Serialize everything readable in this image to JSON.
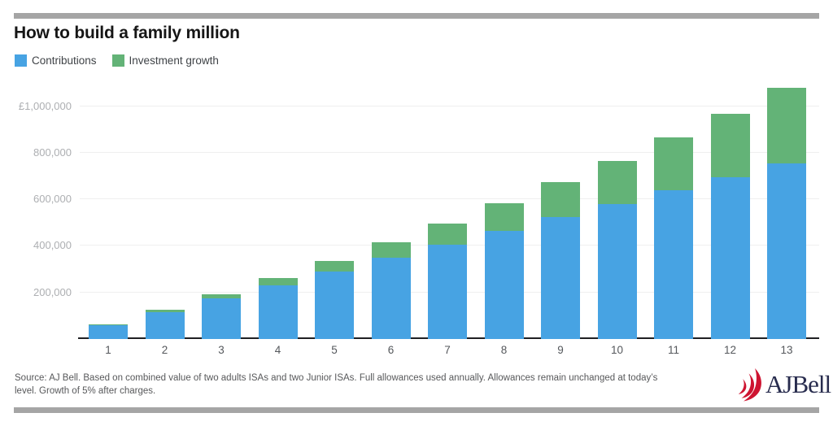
{
  "title": "How to build a family million",
  "legend": [
    {
      "label": "Contributions",
      "color": "#47a3e3"
    },
    {
      "label": "Investment growth",
      "color": "#63b377"
    }
  ],
  "chart_data": {
    "type": "bar",
    "stacked": true,
    "title": "How to build a family million",
    "xlabel": "",
    "ylabel": "",
    "categories": [
      "1",
      "2",
      "3",
      "4",
      "5",
      "6",
      "7",
      "8",
      "9",
      "10",
      "11",
      "12",
      "13"
    ],
    "series": [
      {
        "name": "Contributions",
        "color": "#47a3e3",
        "values": [
          58000,
          116000,
          174000,
          232000,
          290000,
          348000,
          406000,
          464000,
          522000,
          580000,
          638000,
          696000,
          754000
        ]
      },
      {
        "name": "Investment growth",
        "color": "#63b377",
        "values": [
          2900,
          8845,
          17987,
          30487,
          46511,
          66236,
          89848,
          117541,
          149518,
          185994,
          227193,
          273353,
          324721
        ]
      }
    ],
    "yticks": [
      {
        "value": 200000,
        "label": "200,000"
      },
      {
        "value": 400000,
        "label": "400,000"
      },
      {
        "value": 600000,
        "label": "600,000"
      },
      {
        "value": 800000,
        "label": "800,000"
      },
      {
        "value": 1000000,
        "label": "£1,000,000"
      }
    ],
    "ylim": [
      0,
      1106000
    ],
    "grid": true,
    "legend_position": "top-left"
  },
  "footer": {
    "line1": "Source: AJ Bell. Based on combined value of two adults ISAs and two Junior ISAs. Full allowances used annually. Allowances remain unchanged at today’s",
    "line2": "level. Growth of 5% after charges."
  },
  "logo": {
    "text": "AJBell",
    "swoosh_color": "#ce1431",
    "text_color": "#282c4e"
  },
  "colors": {
    "rule_gray": "#a5a5a5",
    "axis_line": "#1f2023",
    "gridline": "#efefef",
    "y_tick_text": "#adafb2",
    "x_tick_text": "#55585c",
    "footer_text": "#57585a",
    "title_text": "#161616"
  }
}
